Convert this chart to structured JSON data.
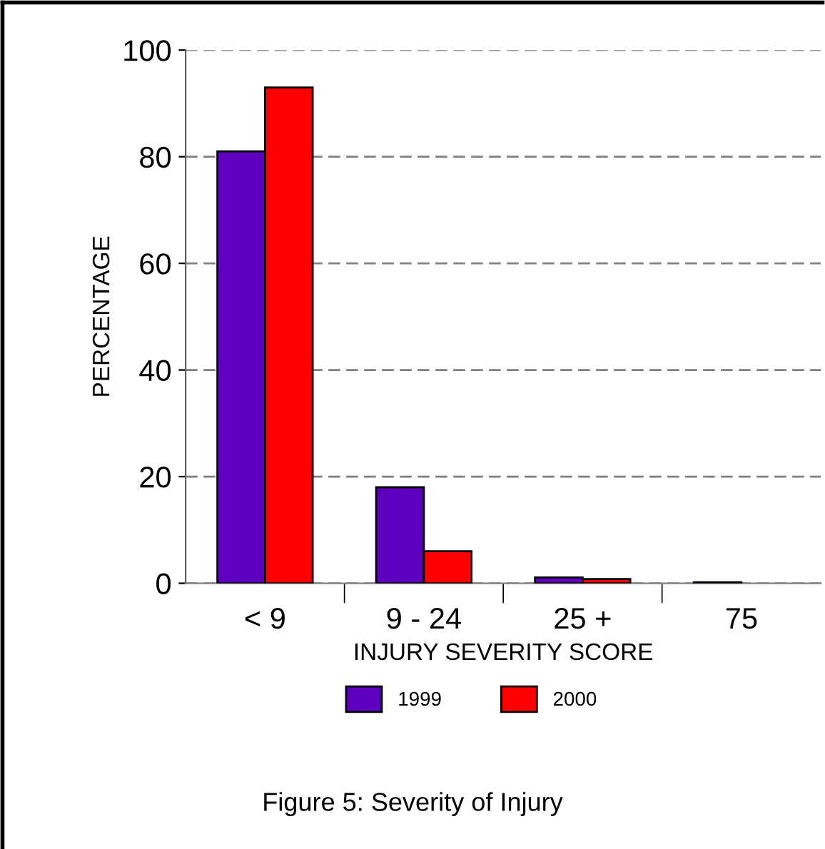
{
  "chart_data": {
    "type": "bar",
    "title": "Figure 5: Severity of Injury",
    "xlabel": "INJURY SEVERITY SCORE",
    "ylabel": "PERCENTAGE",
    "categories": [
      "< 9",
      "9 - 24",
      "25 +",
      "75"
    ],
    "series": [
      {
        "name": "1999",
        "color": "#5f00c0",
        "values": [
          81,
          18,
          1.1,
          0.2
        ]
      },
      {
        "name": "2000",
        "color": "#ff0000",
        "values": [
          93,
          6,
          0.8,
          null
        ]
      }
    ],
    "ylim": [
      0,
      100
    ],
    "yticks": [
      0,
      20,
      40,
      60,
      80,
      100
    ],
    "grid": "y",
    "legend": "bottom"
  }
}
